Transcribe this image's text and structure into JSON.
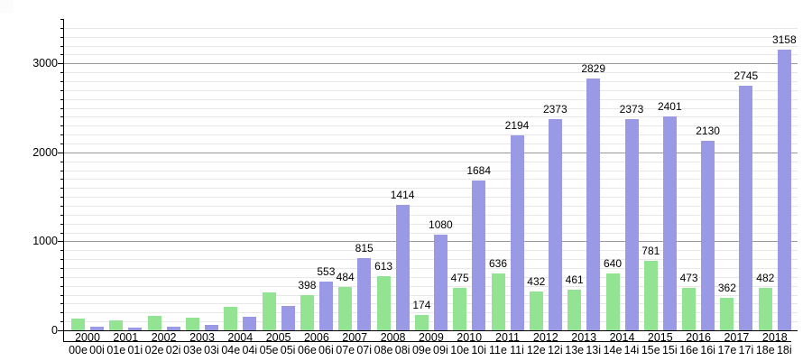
{
  "chart_data": {
    "type": "bar",
    "title": "",
    "xlabel": "",
    "ylabel": "",
    "categories": [
      "2000",
      "2001",
      "2002",
      "2003",
      "2004",
      "2005",
      "2006",
      "2007",
      "2008",
      "2009",
      "2010",
      "2011",
      "2012",
      "2013",
      "2014",
      "2015",
      "2016",
      "2017",
      "2018"
    ],
    "x_sublabels": [
      "00e",
      "00i",
      "01e",
      "01i",
      "02e",
      "02i",
      "03e",
      "03i",
      "04e",
      "04i",
      "05e",
      "05i",
      "06e",
      "06i",
      "07e",
      "07i",
      "08e",
      "08i",
      "09e",
      "09i",
      "10e",
      "10i",
      "11e",
      "11i",
      "12e",
      "12i",
      "13e",
      "13i",
      "14e",
      "14i",
      "15e",
      "15i",
      "16e",
      "16i",
      "17e",
      "17i",
      "18e",
      "18i"
    ],
    "series": [
      {
        "name": "e",
        "color": "#92E492",
        "values": [
          135,
          115,
          160,
          140,
          265,
          425,
          398,
          484,
          613,
          174,
          475,
          636,
          432,
          461,
          640,
          781,
          473,
          362,
          482
        ],
        "labels": [
          null,
          null,
          null,
          null,
          null,
          null,
          "398",
          "484",
          "613",
          "174",
          "475",
          "636",
          "432",
          "461",
          "640",
          "781",
          "473",
          "362",
          "482"
        ]
      },
      {
        "name": "i",
        "color": "#9999E6",
        "values": [
          45,
          30,
          45,
          60,
          150,
          275,
          553,
          815,
          1414,
          1080,
          1684,
          2194,
          2373,
          2829,
          2373,
          2401,
          2130,
          2745,
          3158
        ],
        "labels": [
          null,
          null,
          null,
          null,
          null,
          null,
          "553",
          "815",
          "1414",
          "1080",
          "1684",
          "2194",
          "2373",
          "2829",
          "2373",
          "2401",
          "2130",
          "2745",
          "3158"
        ]
      }
    ],
    "ylim": [
      0,
      3500
    ],
    "yticks": [
      0,
      1000,
      2000,
      3000
    ],
    "ytick_labels": [
      "0",
      "1000",
      "2000",
      "3000"
    ],
    "minor_grid_step": 100,
    "grid": true,
    "legend": false,
    "colors": {
      "background": "#ffffff",
      "axis": "#000000",
      "minor_grid": "#e7e7e7",
      "major_grid": "#9a9a9a",
      "text": "#000000"
    }
  }
}
